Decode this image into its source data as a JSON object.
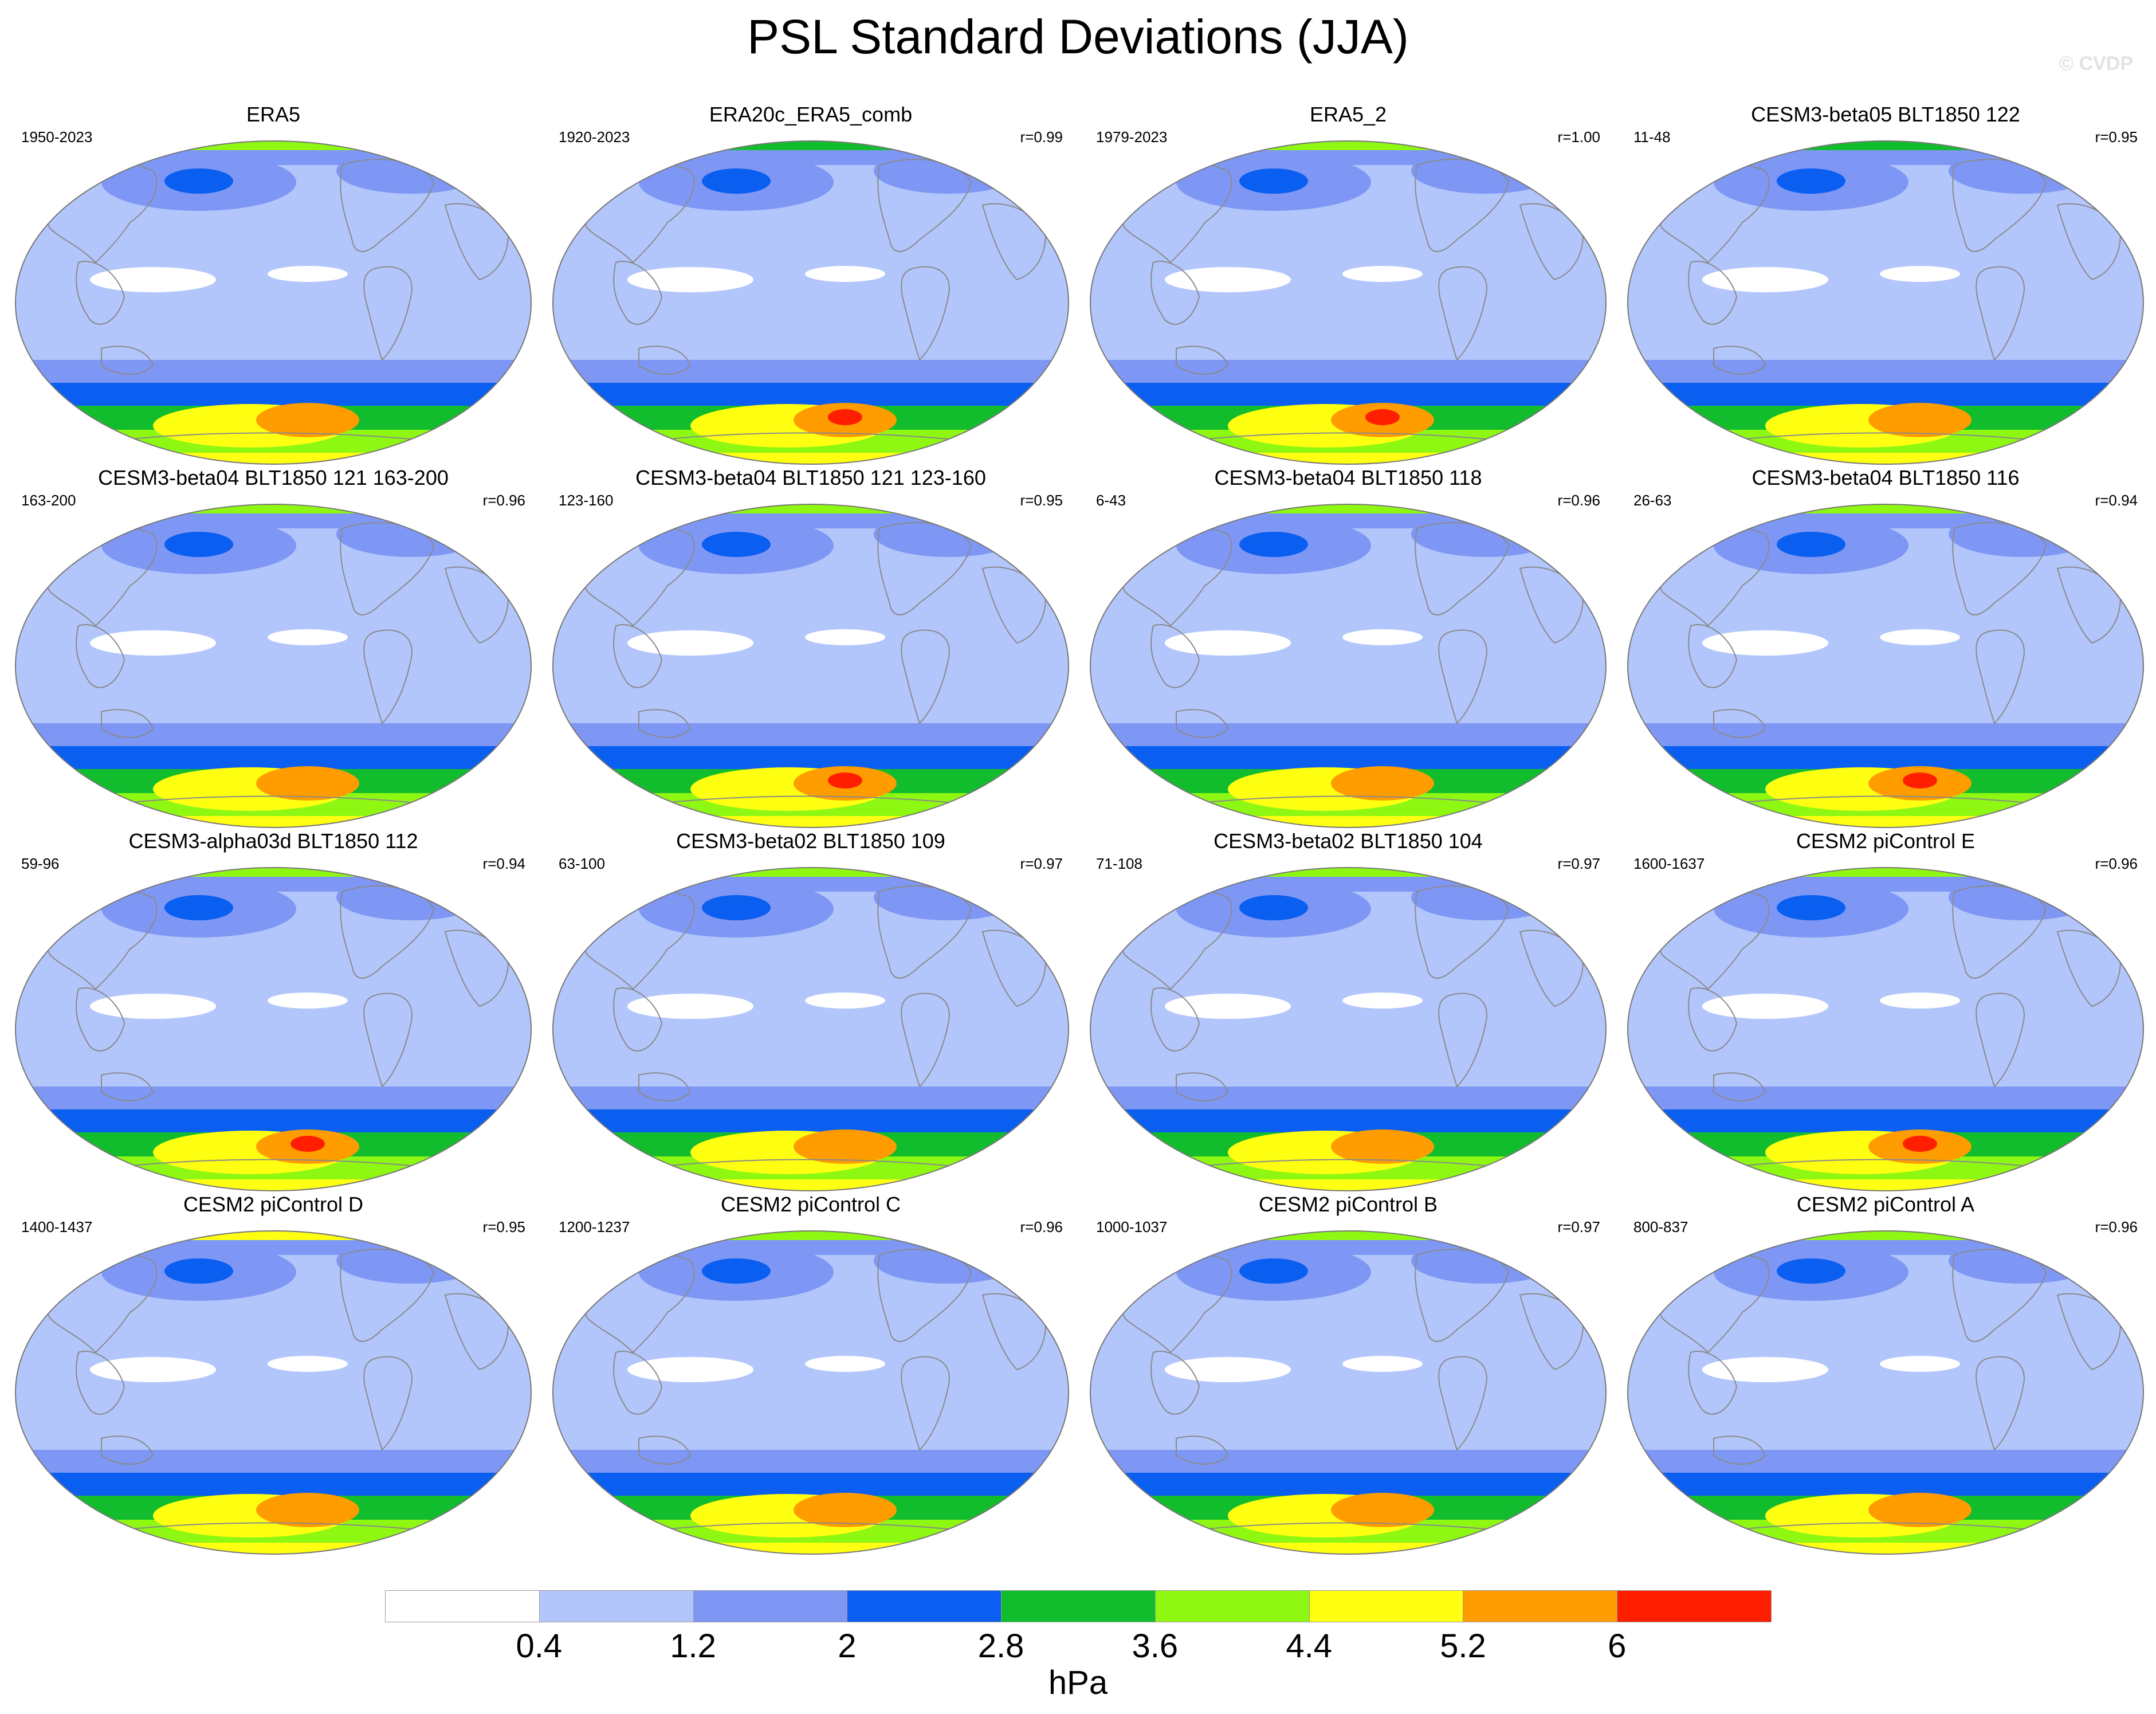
{
  "title": "PSL Standard Deviations (JJA)",
  "watermark": "© CVDP",
  "colorbar": {
    "colors": [
      "#ffffff",
      "#b3c6fb",
      "#7e97f5",
      "#0a5ef0",
      "#12bd2d",
      "#8ef812",
      "#ffff12",
      "#ff9c00",
      "#ff1f00"
    ],
    "labels": [
      "0.4",
      "1.2",
      "2",
      "2.8",
      "3.6",
      "4.4",
      "5.2",
      "6"
    ],
    "units": "hPa"
  },
  "map_style": {
    "ocean_base": "#b3c6fb",
    "coast": "#8a8a8a"
  },
  "panels": [
    {
      "title": "ERA5",
      "years": "1950-2023",
      "r": "",
      "south_peak": 5.6,
      "north_band": 3.6
    },
    {
      "title": "ERA20c_ERA5_comb",
      "years": "1920-2023",
      "r": "r=0.99",
      "south_peak": 6.1,
      "north_band": 3.2
    },
    {
      "title": "ERA5_2",
      "years": "1979-2023",
      "r": "r=1.00",
      "south_peak": 6.1,
      "north_band": 3.6
    },
    {
      "title": "CESM3-beta05 BLT1850 122",
      "years": "11-48",
      "r": "r=0.95",
      "south_peak": 5.2,
      "north_band": 2.8
    },
    {
      "title": "CESM3-beta04 BLT1850 121 163-200",
      "years": "163-200",
      "r": "r=0.96",
      "south_peak": 5.6,
      "north_band": 3.6
    },
    {
      "title": "CESM3-beta04 BLT1850 121 123-160",
      "years": "123-160",
      "r": "r=0.95",
      "south_peak": 6.1,
      "north_band": 3.6
    },
    {
      "title": "CESM3-beta04 BLT1850 118",
      "years": "6-43",
      "r": "r=0.96",
      "south_peak": 5.6,
      "north_band": 3.6
    },
    {
      "title": "CESM3-beta04 BLT1850 116",
      "years": "26-63",
      "r": "r=0.94",
      "south_peak": 6.1,
      "north_band": 3.6
    },
    {
      "title": "CESM3-alpha03d BLT1850 112",
      "years": "59-96",
      "r": "r=0.94",
      "south_peak": 6.1,
      "north_band": 3.6
    },
    {
      "title": "CESM3-beta02 BLT1850 109",
      "years": "63-100",
      "r": "r=0.97",
      "south_peak": 5.6,
      "north_band": 3.6
    },
    {
      "title": "CESM3-beta02 BLT1850 104",
      "years": "71-108",
      "r": "r=0.97",
      "south_peak": 5.6,
      "north_band": 3.6
    },
    {
      "title": "CESM2 piControl E",
      "years": "1600-1637",
      "r": "r=0.96",
      "south_peak": 6.1,
      "north_band": 3.6
    },
    {
      "title": "CESM2 piControl D",
      "years": "1400-1437",
      "r": "r=0.95",
      "south_peak": 5.6,
      "north_band": 4.4
    },
    {
      "title": "CESM2 piControl C",
      "years": "1200-1237",
      "r": "r=0.96",
      "south_peak": 5.6,
      "north_band": 3.6
    },
    {
      "title": "CESM2 piControl B",
      "years": "1000-1037",
      "r": "r=0.97",
      "south_peak": 5.6,
      "north_band": 3.6
    },
    {
      "title": "CESM2 piControl A",
      "years": "800-837",
      "r": "r=0.96",
      "south_peak": 5.6,
      "north_band": 3.6
    }
  ]
}
